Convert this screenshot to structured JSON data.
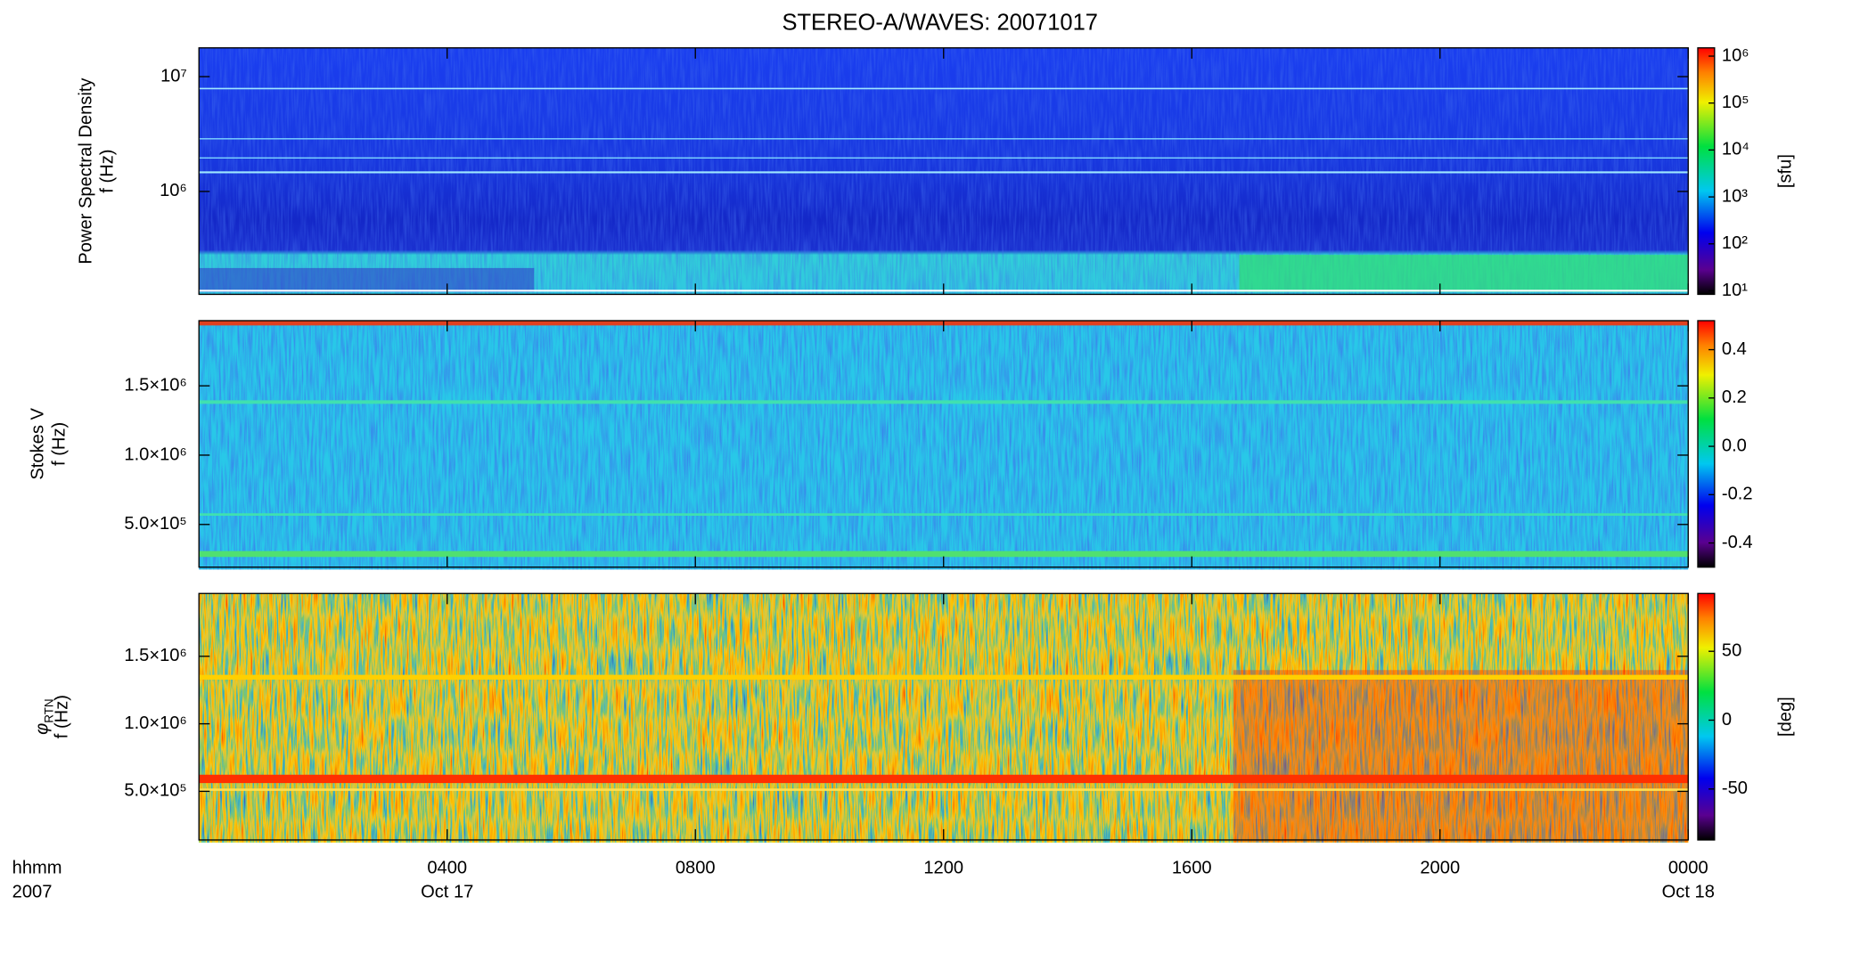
{
  "chart_data": [
    {
      "type": "heatmap",
      "title": "STEREO-A/WAVES: 20071017",
      "ylabel": [
        "Power Spectral Density",
        "f (Hz)"
      ],
      "log_y": true,
      "ylim": [
        127000,
        17800000
      ],
      "yticks": [
        {
          "value": 1000000,
          "label": "10⁶"
        },
        {
          "value": 10000000,
          "label": "10⁷"
        }
      ],
      "colorbar": {
        "log": true,
        "lim": [
          8.4,
          1500000
        ],
        "ticks": [
          {
            "value": 10,
            "label": "10¹"
          },
          {
            "value": 100,
            "label": "10²"
          },
          {
            "value": 1000,
            "label": "10³"
          },
          {
            "value": 10000,
            "label": "10⁴"
          },
          {
            "value": 100000,
            "label": "10⁵"
          },
          {
            "value": 1000000,
            "label": "10⁶"
          }
        ],
        "label": "[sfu]"
      }
    },
    {
      "type": "heatmap",
      "ylabel": [
        "Stokes V",
        "f (Hz)"
      ],
      "ylim": [
        192000,
        1970000
      ],
      "yticks": [
        {
          "value": 500000,
          "label": "5.0×10⁵"
        },
        {
          "value": 1000000,
          "label": "1.0×10⁶"
        },
        {
          "value": 1500000,
          "label": "1.5×10⁶"
        }
      ],
      "colorbar": {
        "lim": [
          -0.5,
          0.52
        ],
        "ticks": [
          -0.4,
          -0.2,
          {
            "value": 0,
            "label": "0.0"
          },
          0.2,
          0.4
        ]
      }
    },
    {
      "type": "heatmap",
      "ylabel": [
        "φ",
        "RTN",
        "f (Hz)"
      ],
      "ylim": [
        140000,
        1965000
      ],
      "yticks": [
        {
          "value": 500000,
          "label": "5.0×10⁵"
        },
        {
          "value": 1000000,
          "label": "1.0×10⁶"
        },
        {
          "value": 1500000,
          "label": "1.5×10⁶"
        }
      ],
      "colorbar": {
        "lim": [
          -87,
          92
        ],
        "ticks": [
          -50,
          0,
          50
        ],
        "label": "[deg]"
      },
      "xlim": [
        0,
        24
      ],
      "xticks": [
        {
          "value": 4,
          "label": "0400"
        },
        {
          "value": 8,
          "label": "0800"
        },
        {
          "value": 12,
          "label": "1200"
        },
        {
          "value": 16,
          "label": "1600"
        },
        {
          "value": 20,
          "label": "2000"
        },
        {
          "value": 24,
          "label": "0000"
        }
      ],
      "xtick_dates": [
        {
          "value": 4,
          "label": "Oct 17"
        },
        {
          "value": 24,
          "label": "Oct 18"
        }
      ],
      "xlabel": [
        "hhmm",
        "2007"
      ]
    }
  ]
}
